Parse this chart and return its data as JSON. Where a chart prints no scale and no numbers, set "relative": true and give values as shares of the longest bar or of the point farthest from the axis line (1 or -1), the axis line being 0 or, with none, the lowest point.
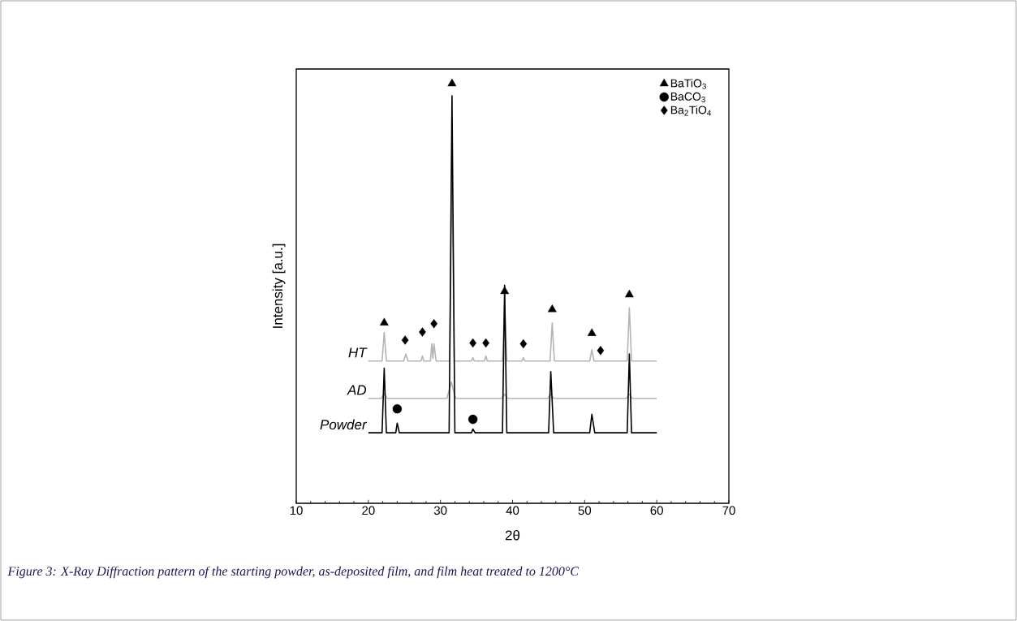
{
  "chart_data": {
    "type": "line",
    "relative": true,
    "xlabel": "2θ",
    "ylabel": "Intensity [a.u.]",
    "xlim": [
      10,
      70
    ],
    "xticks": [
      10,
      20,
      30,
      40,
      50,
      60,
      70
    ],
    "legend": "top right",
    "grid": false,
    "annotations": [
      "Figure 3: X-Ray Diffraction pattern of the starting powder, as-deposited film, and film heat treated to 1200°C"
    ],
    "series": [
      {
        "name": "HT",
        "color": "#b4b4b4",
        "x": [
          20,
          21.9,
          22.2,
          22.5,
          24.9,
          25.2,
          25.5,
          27.3,
          27.5,
          27.7,
          28.6,
          28.8,
          28.95,
          29.1,
          29.4,
          31.3,
          31.6,
          31.9,
          34.3,
          34.5,
          34.7,
          36.1,
          36.3,
          36.5,
          38.6,
          38.9,
          39.2,
          41.3,
          41.5,
          41.7,
          45.2,
          45.5,
          45.8,
          50.7,
          51.0,
          51.3,
          55.9,
          56.2,
          56.5,
          60
        ],
        "values": [
          0.339,
          0.339,
          0.407,
          0.339,
          0.339,
          0.356,
          0.339,
          0.339,
          0.351,
          0.339,
          0.339,
          0.38,
          0.345,
          0.38,
          0.339,
          0.339,
          0.803,
          0.339,
          0.339,
          0.347,
          0.339,
          0.339,
          0.351,
          0.339,
          0.339,
          0.472,
          0.339,
          0.339,
          0.347,
          0.339,
          0.339,
          0.43,
          0.339,
          0.339,
          0.366,
          0.339,
          0.339,
          0.466,
          0.339,
          0.339
        ]
      },
      {
        "name": "AD",
        "color": "#b4b4b4",
        "x": [
          20,
          21.8,
          22.2,
          22.6,
          30.9,
          31.5,
          32.1,
          38.5,
          38.9,
          39.3,
          44.9,
          45.3,
          45.7,
          55.8,
          56.2,
          56.6,
          60
        ],
        "values": [
          0.25,
          0.25,
          0.262,
          0.25,
          0.25,
          0.289,
          0.25,
          0.25,
          0.26,
          0.25,
          0.25,
          0.26,
          0.25,
          0.25,
          0.26,
          0.25,
          0.25
        ]
      },
      {
        "name": "Powder",
        "color": "#000000",
        "x": [
          20,
          21.9,
          22.2,
          22.5,
          23.8,
          24.0,
          24.3,
          31.2,
          31.6,
          32.0,
          34.3,
          34.5,
          34.8,
          38.6,
          38.9,
          39.2,
          45.0,
          45.3,
          45.7,
          50.7,
          51.0,
          51.4,
          55.9,
          56.2,
          56.5,
          60
        ],
        "values": [
          0.168,
          0.168,
          0.322,
          0.168,
          0.168,
          0.191,
          0.168,
          0.168,
          0.971,
          0.168,
          0.168,
          0.177,
          0.168,
          0.168,
          0.52,
          0.168,
          0.168,
          0.314,
          0.168,
          0.168,
          0.212,
          0.168,
          0.168,
          0.356,
          0.168,
          0.168
        ]
      },
      {
        "name": "BaTiO$_{3}$",
        "type": "scatter",
        "marker": "triangle",
        "color": "#000000",
        "x": [
          22.2,
          31.6,
          38.9,
          45.5,
          51.0,
          56.2
        ],
        "values": [
          0.43,
          1.0,
          0.505,
          0.462,
          0.405,
          0.497
        ]
      },
      {
        "name": "BaCO$_{3}$",
        "type": "scatter",
        "marker": "circle",
        "color": "#000000",
        "x": [
          24.0,
          34.5
        ],
        "values": [
          0.225,
          0.2
        ]
      },
      {
        "name": "Ba$_{2}$TiO$_{4}$",
        "type": "scatter",
        "marker": "diamond",
        "color": "#000000",
        "x": [
          25.1,
          27.5,
          29.1,
          34.5,
          36.3,
          41.5,
          52.2
        ],
        "values": [
          0.389,
          0.408,
          0.428,
          0.382,
          0.382,
          0.38,
          0.364
        ]
      }
    ]
  }
}
